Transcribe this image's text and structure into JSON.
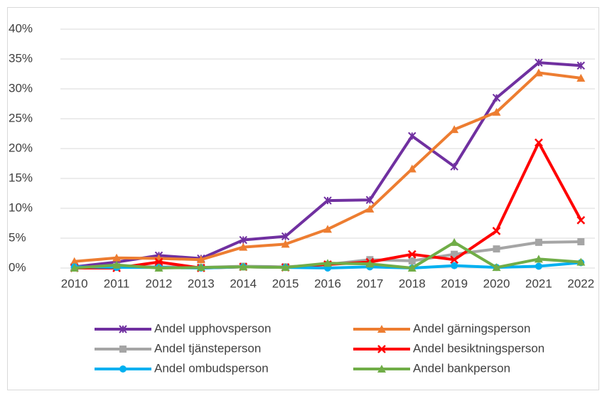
{
  "chart_data": {
    "type": "line",
    "categories": [
      "2010",
      "2011",
      "2012",
      "2013",
      "2014",
      "2015",
      "2016",
      "2017",
      "2018",
      "2019",
      "2020",
      "2021",
      "2022"
    ],
    "series": [
      {
        "name": "Andel upphovsperson",
        "color": "#7030a0",
        "marker": "star",
        "values": [
          0.2,
          1.0,
          2.1,
          1.6,
          4.7,
          5.3,
          11.3,
          11.4,
          22.1,
          17.0,
          28.5,
          34.4,
          33.9
        ]
      },
      {
        "name": "Andel gärningsperson",
        "color": "#ed7d31",
        "marker": "triangle",
        "values": [
          1.1,
          1.7,
          1.6,
          1.4,
          3.5,
          4.0,
          6.5,
          9.9,
          16.6,
          23.2,
          26.1,
          32.7,
          31.8
        ]
      },
      {
        "name": "Andel tjänsteperson",
        "color": "#a5a5a5",
        "marker": "square",
        "values": [
          0.1,
          0.3,
          0.2,
          0.1,
          0.3,
          0.2,
          0.6,
          1.4,
          1.2,
          2.3,
          3.2,
          4.3,
          4.4
        ]
      },
      {
        "name": "Andel besiktningsperson",
        "color": "#ff0000",
        "marker": "x",
        "values": [
          0,
          0,
          1.0,
          0,
          0.2,
          0.1,
          0.6,
          1.0,
          2.3,
          1.4,
          6.2,
          21.0,
          8.0
        ]
      },
      {
        "name": "Andel ombudsperson",
        "color": "#00b0f0",
        "marker": "circle",
        "values": [
          0.2,
          0.1,
          0.1,
          0,
          0.2,
          0.1,
          0,
          0.2,
          0,
          0.4,
          0.1,
          0.3,
          0.9
        ]
      },
      {
        "name": "Andel bankperson",
        "color": "#70ad47",
        "marker": "triangle",
        "values": [
          0,
          0.5,
          0,
          0.1,
          0.2,
          0.1,
          0.8,
          0.7,
          0,
          4.3,
          0.1,
          1.5,
          1.0
        ]
      }
    ],
    "ylim": [
      0,
      40
    ],
    "yticks": [
      {
        "value": 0,
        "label": "0%"
      },
      {
        "value": 5,
        "label": "5%"
      },
      {
        "value": 10,
        "label": "10%"
      },
      {
        "value": 15,
        "label": "15%"
      },
      {
        "value": 20,
        "label": "20%"
      },
      {
        "value": 25,
        "label": "25%"
      },
      {
        "value": 30,
        "label": "30%"
      },
      {
        "value": 35,
        "label": "35%"
      },
      {
        "value": 40,
        "label": "40%"
      }
    ],
    "grid": true,
    "legend": "bottom"
  }
}
